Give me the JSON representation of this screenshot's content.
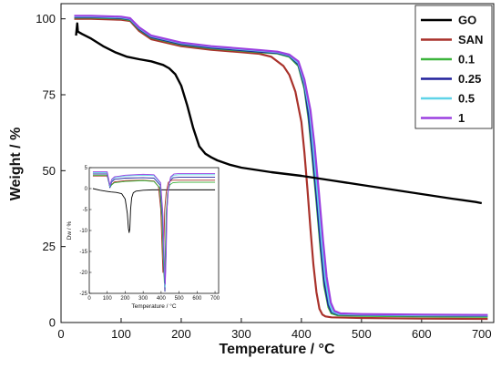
{
  "chart_data": [
    {
      "type": "line",
      "xlabel": "Temperature / °C",
      "ylabel": "Weight / %",
      "xlim": [
        0,
        720
      ],
      "ylim": [
        0,
        105
      ],
      "xticks": [
        "0",
        "100",
        "200",
        "300",
        "400",
        "500",
        "600",
        "700"
      ],
      "yticks": [
        "0",
        "25",
        "50",
        "75",
        "100"
      ],
      "legend_position": "top-right",
      "series": [
        {
          "name": "GO",
          "color": "#000000",
          "x": [
            25,
            27,
            28,
            35,
            50,
            70,
            90,
            110,
            130,
            150,
            170,
            180,
            190,
            200,
            210,
            220,
            230,
            240,
            250,
            260,
            280,
            300,
            350,
            400,
            450,
            500,
            550,
            600,
            650,
            690,
            700
          ],
          "y": [
            94.5,
            98.5,
            95.8,
            95.0,
            93.5,
            91.0,
            89.0,
            87.5,
            86.7,
            86.0,
            84.8,
            83.7,
            81.8,
            78.0,
            71.5,
            64.0,
            58.0,
            55.6,
            54.4,
            53.4,
            52.0,
            51.0,
            49.5,
            48.3,
            46.8,
            45.3,
            43.8,
            42.3,
            40.8,
            39.7,
            39.3
          ]
        },
        {
          "name": "SAN",
          "color": "#a9322b",
          "x": [
            22,
            50,
            100,
            115,
            130,
            150,
            200,
            250,
            300,
            330,
            350,
            370,
            380,
            390,
            400,
            405,
            410,
            415,
            420,
            425,
            430,
            435,
            440,
            450,
            500,
            600,
            710
          ],
          "y": [
            100.0,
            100.0,
            99.7,
            99.3,
            96.0,
            93.3,
            91.0,
            89.8,
            89.0,
            88.5,
            87.5,
            84.5,
            81.5,
            76.0,
            66.0,
            56.0,
            44.0,
            31.0,
            19.0,
            10.0,
            4.5,
            2.6,
            2.0,
            1.7,
            1.5,
            1.3,
            1.2
          ]
        },
        {
          "name": "0.1",
          "color": "#3cb43c",
          "x": [
            22,
            50,
            100,
            115,
            130,
            150,
            200,
            250,
            300,
            330,
            360,
            380,
            395,
            405,
            412,
            418,
            425,
            432,
            438,
            445,
            450,
            460,
            500,
            600,
            710
          ],
          "y": [
            100.4,
            100.4,
            100.1,
            99.6,
            96.5,
            93.8,
            91.5,
            90.3,
            89.5,
            89.0,
            88.6,
            87.5,
            84.5,
            77.0,
            67.0,
            55.0,
            40.0,
            24.0,
            12.0,
            5.0,
            3.0,
            2.4,
            2.2,
            2.0,
            1.9
          ]
        },
        {
          "name": "0.25",
          "color": "#20209c",
          "x": [
            22,
            50,
            100,
            115,
            130,
            150,
            200,
            250,
            300,
            330,
            360,
            380,
            395,
            405,
            412,
            418,
            425,
            432,
            438,
            445,
            450,
            460,
            500,
            600,
            710
          ],
          "y": [
            100.6,
            100.6,
            100.3,
            99.8,
            96.7,
            94.0,
            91.7,
            90.5,
            89.7,
            89.2,
            88.8,
            87.8,
            85.0,
            78.0,
            68.5,
            57.0,
            42.0,
            26.0,
            13.5,
            5.8,
            3.5,
            2.7,
            2.5,
            2.3,
            2.2
          ]
        },
        {
          "name": "0.5",
          "color": "#5fd3e8",
          "x": [
            22,
            50,
            100,
            115,
            130,
            150,
            200,
            250,
            300,
            330,
            360,
            380,
            395,
            405,
            414,
            420,
            427,
            434,
            440,
            447,
            452,
            462,
            500,
            600,
            710
          ],
          "y": [
            100.8,
            100.8,
            100.5,
            100.0,
            97.0,
            94.3,
            92.0,
            90.8,
            90.0,
            89.5,
            89.0,
            88.0,
            85.5,
            79.0,
            69.0,
            57.0,
            42.0,
            26.0,
            14.0,
            6.0,
            3.6,
            2.8,
            2.6,
            2.4,
            2.3
          ]
        },
        {
          "name": "1",
          "color": "#9b3fe0",
          "x": [
            22,
            50,
            100,
            115,
            130,
            150,
            200,
            250,
            300,
            330,
            360,
            380,
            395,
            405,
            415,
            422,
            429,
            436,
            442,
            449,
            455,
            465,
            500,
            600,
            710
          ],
          "y": [
            101.0,
            101.0,
            100.7,
            100.2,
            97.2,
            94.5,
            92.2,
            91.0,
            90.2,
            89.7,
            89.2,
            88.2,
            86.0,
            80.0,
            70.0,
            58.0,
            43.0,
            27.0,
            15.0,
            6.5,
            3.8,
            3.0,
            2.8,
            2.6,
            2.5
          ]
        }
      ]
    },
    {
      "type": "line",
      "xlabel": "Temperature / °C",
      "ylabel": "Dw / %",
      "xlim": [
        0,
        720
      ],
      "ylim": [
        -25,
        5
      ],
      "xticks": [
        "0",
        "100",
        "200",
        "300",
        "400",
        "500",
        "600",
        "700"
      ],
      "yticks": [
        "5",
        "0",
        "-5",
        "-10",
        "-15",
        "-20",
        "-25"
      ],
      "series": [
        {
          "color": "#000000",
          "x": [
            20,
            60,
            90,
            120,
            150,
            180,
            200,
            212,
            218,
            222,
            226,
            230,
            236,
            245,
            260,
            300,
            350,
            400,
            450,
            500,
            600,
            700
          ],
          "y": [
            0.0,
            -0.4,
            -0.6,
            -0.8,
            -0.9,
            -1.2,
            -2.5,
            -6.0,
            -9.5,
            -10.5,
            -9.5,
            -5.0,
            -2.2,
            -1.0,
            -0.6,
            -0.4,
            -0.3,
            -0.3,
            -0.3,
            -0.3,
            -0.3,
            -0.3
          ]
        },
        {
          "color": "#a9322b",
          "x": [
            20,
            60,
            100,
            115,
            125,
            140,
            200,
            300,
            360,
            385,
            398,
            405,
            410,
            415,
            420,
            428,
            440,
            460,
            500,
            600,
            700
          ],
          "y": [
            3.0,
            3.0,
            3.0,
            0.5,
            1.0,
            1.6,
            1.9,
            2.0,
            1.8,
            0.5,
            -5.0,
            -14.0,
            -20.0,
            -14.0,
            -5.0,
            -1.0,
            1.5,
            2.0,
            2.0,
            2.0,
            2.0
          ]
        },
        {
          "color": "#3cb43c",
          "x": [
            20,
            60,
            100,
            115,
            125,
            140,
            200,
            300,
            360,
            392,
            405,
            413,
            418,
            423,
            428,
            436,
            448,
            465,
            500,
            600,
            700
          ],
          "y": [
            3.2,
            3.2,
            3.2,
            0.3,
            0.9,
            1.4,
            1.7,
            1.9,
            1.7,
            0.2,
            -7.0,
            -18.0,
            -22.5,
            -16.0,
            -6.0,
            -1.0,
            0.9,
            1.4,
            1.5,
            1.5,
            1.5
          ]
        },
        {
          "color": "#20209c",
          "x": [
            20,
            60,
            100,
            115,
            125,
            140,
            200,
            300,
            360,
            395,
            408,
            416,
            421,
            426,
            431,
            439,
            450,
            468,
            500,
            600,
            700
          ],
          "y": [
            3.5,
            3.5,
            3.5,
            0.2,
            1.6,
            2.2,
            2.5,
            2.6,
            2.5,
            0.8,
            -7.0,
            -19.0,
            -24.5,
            -17.0,
            -6.0,
            -0.5,
            2.0,
            2.6,
            2.7,
            2.7,
            2.7
          ]
        },
        {
          "color": "#5fd3e8",
          "x": [
            20,
            60,
            100,
            115,
            125,
            140,
            200,
            300,
            360,
            396,
            409,
            417,
            422,
            427,
            432,
            440,
            452,
            470,
            500,
            600,
            700
          ],
          "y": [
            3.8,
            3.8,
            3.8,
            0.5,
            2.0,
            2.6,
            3.0,
            3.2,
            3.1,
            1.2,
            -6.5,
            -18.5,
            -23.5,
            -16.5,
            -5.5,
            0.0,
            2.5,
            3.2,
            3.3,
            3.3,
            3.3
          ]
        },
        {
          "color": "#9b3fe0",
          "x": [
            20,
            60,
            100,
            115,
            125,
            140,
            200,
            300,
            360,
            397,
            410,
            418,
            423,
            428,
            433,
            441,
            453,
            472,
            500,
            600,
            700
          ],
          "y": [
            4.0,
            4.0,
            4.0,
            0.8,
            2.2,
            2.8,
            3.2,
            3.4,
            3.3,
            1.4,
            -6.0,
            -17.5,
            -22.8,
            -16.0,
            -5.0,
            0.3,
            2.8,
            3.5,
            3.6,
            3.6,
            3.6
          ]
        }
      ]
    }
  ]
}
